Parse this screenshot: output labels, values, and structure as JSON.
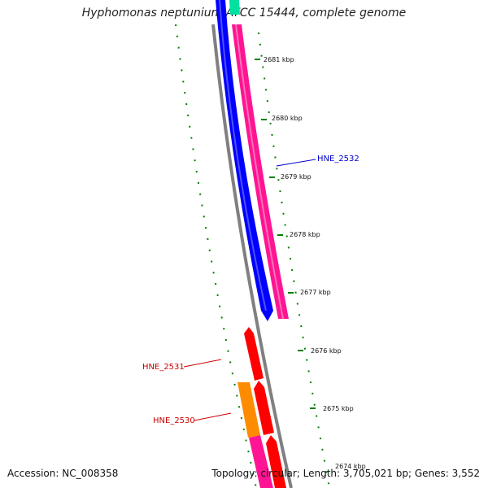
{
  "title": "Hyphomonas neptunium ATCC 15444, complete genome",
  "footer": {
    "accession": "Accession: NC_008358",
    "topology": "Topology: circular; Length: 3,705,021 bp; Genes: 3,552"
  },
  "colors": {
    "backbone": "#808080",
    "tick": "#008000",
    "gene_blue": "#0000ff",
    "gene_pink": "#ff1493",
    "gene_red": "#ff0000",
    "gene_orange": "#ff8c00",
    "gene_teal": "#00e0a0",
    "label_blue": "#0000cc",
    "label_red": "#cc0000"
  },
  "ticks": [
    {
      "label": "2681 kbp"
    },
    {
      "label": "2680 kbp"
    },
    {
      "label": "2679 kbp"
    },
    {
      "label": "2678 kbp"
    },
    {
      "label": "2677 kbp"
    },
    {
      "label": "2676 kbp"
    },
    {
      "label": "2675 kbp"
    },
    {
      "label": "2674 kbp"
    }
  ],
  "gene_labels": [
    {
      "name": "HNE_2532"
    },
    {
      "name": "HNE_2531"
    },
    {
      "name": "HNE_2530"
    }
  ]
}
